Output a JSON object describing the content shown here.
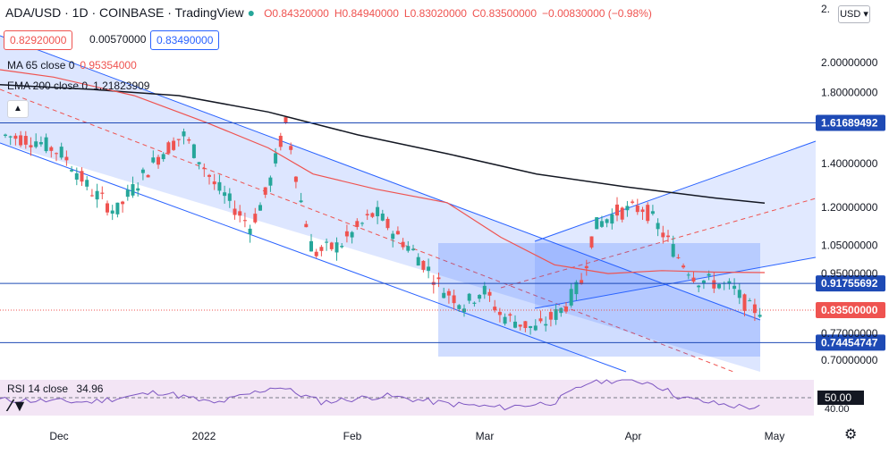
{
  "header": {
    "symbol": "ADA/USD · 1D · COINBASE · TradingView",
    "open": "O0.84320000",
    "high": "H0.84940000",
    "low": "L0.83020000",
    "close": "C0.83500000",
    "change": "−0.00830000 (−0.98%)"
  },
  "trade": {
    "sell": "0.82920000",
    "spread": "0.00570000",
    "buy": "0.83490000"
  },
  "studies": {
    "ma": {
      "label": "MA 65 close 0",
      "value": "0.95354000",
      "color": "#ef5350"
    },
    "ema": {
      "label": "EMA 200 close 0",
      "value": "1.21823909",
      "color": "#131722"
    },
    "rsi": {
      "label": "RSI 14 close",
      "value": "34.96",
      "level_label": "50.00"
    }
  },
  "currency": "USD",
  "price_axis": {
    "ticks": [
      "2.00000000",
      "1.80000000",
      "1.40000000",
      "1.20000000",
      "1.05000000",
      "0.95000000",
      "0.77000000",
      "0.70000000"
    ],
    "tick_values": [
      2.0,
      1.8,
      1.4,
      1.2,
      1.05,
      0.95,
      0.77,
      0.7
    ],
    "tick_cut_top": "2.",
    "tick_cut_rsi": "40.00",
    "levels": [
      {
        "value": 1.61689492,
        "label": "1.61689492",
        "color": "#131722",
        "line": "#1e4ab5"
      },
      {
        "value": 0.91755692,
        "label": "0.91755692",
        "color": "#131722",
        "line": "#1e4ab5"
      },
      {
        "value": 0.74454747,
        "label": "0.74454747",
        "color": "#131722",
        "line": "#1e4ab5"
      },
      {
        "value": 0.835,
        "label": "0.83500000",
        "color": "#ef5350",
        "line": "#ef5350"
      }
    ]
  },
  "time_axis": {
    "labels": [
      "Dec",
      "2022",
      "Feb",
      "Mar",
      "Apr",
      "May"
    ]
  },
  "chart_data": {
    "type": "candlestick",
    "symbol": "ADA/USD",
    "interval": "1D",
    "ohlc_count": 150,
    "last": {
      "open": 0.8432,
      "high": 0.8494,
      "low": 0.8302,
      "close": 0.835
    },
    "ylim": [
      0.66,
      2.4
    ],
    "scale": "log",
    "colors": {
      "up": "#26a69a",
      "down": "#ef5350",
      "channel": "#2962ff",
      "fill": "rgba(41,98,255,0.18)"
    }
  }
}
